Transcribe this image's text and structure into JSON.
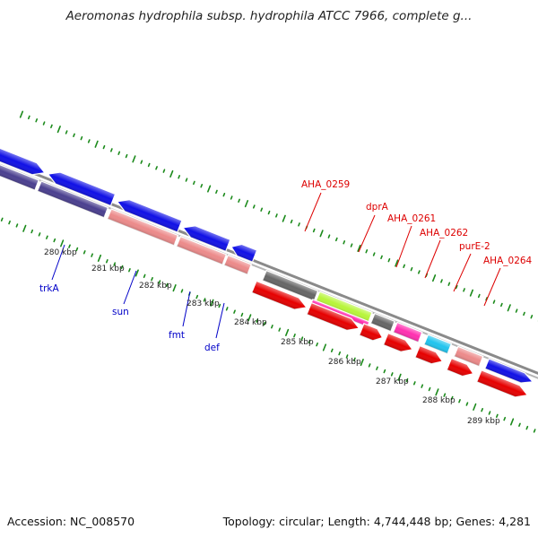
{
  "title": "Aeromonas hydrophila subsp. hydrophila ATCC 7966, complete g...",
  "footer": {
    "accession": "Accession: NC_008570",
    "summary": "Topology: circular; Length: 4,744,448 bp; Genes: 4,281"
  },
  "colors": {
    "forward_gene": "#1010e6",
    "reverse_gene": "#e60000",
    "cds_blue": "#4a3f8f",
    "cds_red": "#ec8a8a",
    "dark_gene": "#666666",
    "lime_gene": "#b7f53a",
    "magenta_gene": "#ff2fb0",
    "cyan_gene": "#20c4ee",
    "tick_green": "#1b8a1b",
    "ruler_gray": "#8a8a8a",
    "label_blue": "#0000c8",
    "label_red": "#dd0000"
  },
  "ruler_ticks": [
    "280 kbp",
    "281 kbp",
    "282 kbp",
    "283 kbp",
    "284 kbp",
    "285 kbp",
    "286 kbp",
    "287 kbp",
    "288 kbp",
    "289 kbp"
  ],
  "gene_labels": {
    "forward": [
      "trkA",
      "sun",
      "fmt",
      "def"
    ],
    "reverse": [
      "AHA_0259",
      "dprA",
      "AHA_0261",
      "AHA_0262",
      "purE-2",
      "AHA_0264"
    ]
  }
}
